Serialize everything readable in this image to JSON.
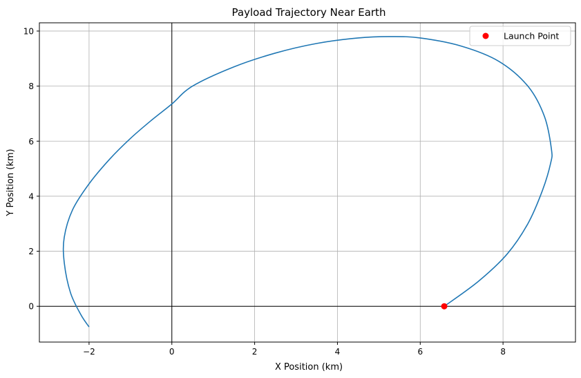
{
  "chart_data": {
    "type": "line",
    "title": "Payload Trajectory Near Earth",
    "xlabel": "X Position (km)",
    "ylabel": "Y Position (km)",
    "xlim": [
      -3.2,
      9.75
    ],
    "ylim": [
      -1.3,
      10.3
    ],
    "xticks": [
      -2,
      0,
      2,
      4,
      6,
      8
    ],
    "yticks": [
      0,
      2,
      4,
      6,
      8,
      10
    ],
    "xtick_labels": [
      "−2",
      "0",
      "2",
      "4",
      "6",
      "8"
    ],
    "ytick_labels": [
      "0",
      "2",
      "4",
      "6",
      "8",
      "10"
    ],
    "grid": true,
    "reference_lines": {
      "x": 0,
      "y": 0
    },
    "legend": {
      "position": "top-right"
    },
    "series": [
      {
        "kind": "line",
        "color": "#1f77b4",
        "x": [
          6.58,
          7.4,
          8.1,
          8.6,
          8.95,
          9.15,
          9.17,
          9.0,
          8.6,
          7.9,
          7.0,
          6.0,
          5.25,
          4.5,
          3.5,
          2.5,
          1.5,
          0.5,
          0.0,
          -0.5,
          -1.0,
          -1.5,
          -2.0,
          -2.4,
          -2.6,
          -2.6,
          -2.45,
          -2.2,
          -2.0
        ],
        "y": [
          0.0,
          0.9,
          1.9,
          3.0,
          4.2,
          5.2,
          5.7,
          6.9,
          8.0,
          8.9,
          9.45,
          9.75,
          9.8,
          9.75,
          9.55,
          9.2,
          8.7,
          8.0,
          7.35,
          6.75,
          6.1,
          5.35,
          4.45,
          3.5,
          2.5,
          1.6,
          0.5,
          -0.3,
          -0.75
        ]
      },
      {
        "kind": "point",
        "name": "Launch Point",
        "color": "#ff0000",
        "x": [
          6.58
        ],
        "y": [
          0.0
        ]
      }
    ]
  }
}
